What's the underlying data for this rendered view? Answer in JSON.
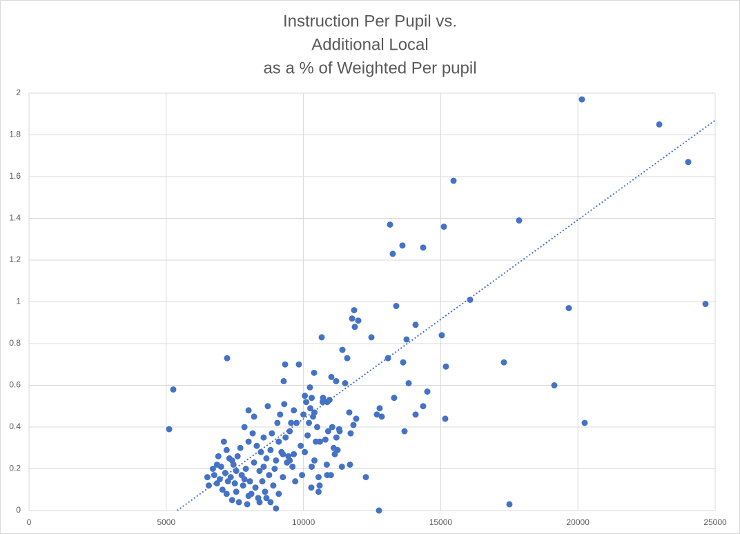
{
  "chart_data": {
    "type": "scatter",
    "title": [
      "Instruction Per Pupil vs.",
      "Additional Local",
      "as a % of Weighted Per pupil"
    ],
    "color": "#4472c4",
    "x": [
      5106,
      5256,
      7218,
      20146,
      22963,
      24019,
      24648,
      15468,
      17857,
      15116,
      13154,
      13254,
      13606,
      14361,
      16071,
      19668,
      17304,
      19140,
      20247,
      17505,
      12752,
      13380,
      11846,
      11771,
      11997,
      11871,
      14085,
      13757,
      15040,
      12475,
      10664,
      11419,
      11594,
      13078,
      13632,
      15191,
      9331,
      9834,
      10387,
      11016,
      11192,
      11519,
      9280,
      13833,
      10236,
      14512,
      13304,
      10714,
      10865,
      12676,
      12777,
      12853,
      14361,
      14085,
      15166,
      13682,
      11670,
      11922,
      11821,
      11720,
      12274,
      11695,
      11318,
      11243,
      11142,
      10865,
      10588,
      10286,
      6500,
      6550,
      6700,
      6750,
      6850,
      6900,
      6950,
      7000,
      7050,
      7100,
      7150,
      7200,
      7250,
      7300,
      7350,
      7400,
      7450,
      7500,
      7550,
      7600,
      7650,
      7700,
      7750,
      7800,
      7850,
      7900,
      7950,
      8000,
      8000,
      8050,
      8100,
      8150,
      8200,
      8200,
      8250,
      8300,
      8350,
      8400,
      8450,
      8500,
      8550,
      8600,
      8650,
      8700,
      8750,
      8800,
      8800,
      8850,
      8900,
      8950,
      9000,
      9000,
      9050,
      9100,
      9150,
      9200,
      9250,
      9300,
      9350,
      9400,
      9450,
      9500,
      9500,
      9550,
      9600,
      9650,
      9650,
      9700,
      9750,
      9900,
      9950,
      10000,
      10050,
      10100,
      10150,
      10200,
      10250,
      10300,
      10350,
      10400,
      10450,
      10500,
      10550,
      10600,
      10700,
      10800,
      10850,
      10900,
      10950,
      11000,
      11050,
      11100,
      11200,
      11300,
      11400,
      10050,
      10300,
      10400,
      9250,
      8650,
      8400,
      8000,
      7850,
      7400,
      6850,
      7200,
      7550,
      8550,
      9100,
      10550
    ],
    "values": [
      0.39,
      0.58,
      0.73,
      1.97,
      1.85,
      1.67,
      0.99,
      1.58,
      1.39,
      1.36,
      1.37,
      1.23,
      1.27,
      1.26,
      1.01,
      0.97,
      0.71,
      0.6,
      0.42,
      0.03,
      0,
      0.98,
      0.96,
      0.92,
      0.91,
      0.88,
      0.89,
      0.82,
      0.84,
      0.83,
      0.83,
      0.77,
      0.73,
      0.73,
      0.71,
      0.69,
      0.7,
      0.7,
      0.66,
      0.64,
      0.62,
      0.61,
      0.62,
      0.61,
      0.59,
      0.57,
      0.54,
      0.54,
      0.52,
      0.46,
      0.49,
      0.45,
      0.5,
      0.46,
      0.44,
      0.38,
      0.47,
      0.44,
      0.41,
      0.37,
      0.16,
      0.22,
      0.38,
      0.29,
      0.27,
      0.17,
      0.12,
      0.11,
      0.16,
      0.12,
      0.2,
      0.17,
      0.13,
      0.26,
      0.15,
      0.21,
      0.1,
      0.33,
      0.18,
      0.08,
      0.14,
      0.25,
      0.16,
      0.05,
      0.22,
      0.13,
      0.19,
      0.26,
      0.04,
      0.3,
      0.17,
      0.12,
      0.4,
      0.2,
      0.03,
      0.48,
      0.33,
      0.14,
      0.08,
      0.37,
      0.45,
      0.23,
      0.11,
      0.31,
      0.06,
      0.19,
      0.28,
      0.14,
      0.35,
      0.09,
      0.25,
      0.5,
      0.17,
      0.04,
      0.29,
      0.37,
      0.12,
      0.2,
      0.01,
      0.24,
      0.42,
      0.08,
      0.46,
      0.28,
      0.16,
      0.51,
      0.35,
      0.23,
      0.26,
      0.38,
      0.24,
      0.42,
      0.21,
      0.27,
      0.48,
      0.14,
      0.42,
      0.31,
      0.17,
      0.46,
      0.28,
      0.52,
      0.36,
      0.42,
      0.49,
      0.21,
      0.45,
      0.24,
      0.33,
      0.4,
      0.16,
      0.33,
      0.52,
      0.34,
      0.22,
      0.38,
      0.53,
      0.17,
      0.4,
      0.3,
      0.35,
      0.39,
      0.21,
      0.55,
      0.54,
      0.47,
      0.27,
      0.06,
      0.04,
      0.07,
      0.15,
      0.24,
      0.22,
      0.29,
      0.09,
      0.21,
      0.33,
      0.09
    ],
    "trendline": {
      "x": [
        5400,
        25000
      ],
      "values": [
        0,
        1.87
      ]
    },
    "xlim": [
      0,
      25000
    ],
    "xticks": [
      0,
      5000,
      10000,
      15000,
      20000,
      25000
    ],
    "ylim": [
      0,
      2
    ],
    "yticks": [
      0,
      0.2,
      0.4,
      0.6,
      0.8,
      1,
      1.2,
      1.4,
      1.6,
      1.8,
      2
    ],
    "grid": true
  }
}
